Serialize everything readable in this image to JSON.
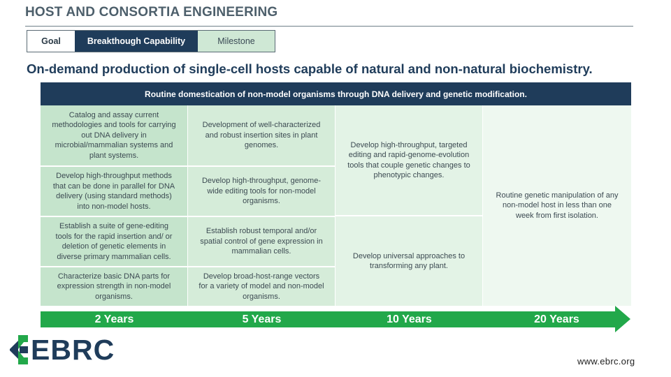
{
  "title": "HOST AND CONSORTIA ENGINEERING",
  "tabs": {
    "goal": "Goal",
    "capability": "Breakthough Capability",
    "milestone": "Milestone"
  },
  "goal_text": "On-demand production of single-cell hosts capable of natural and non-natural biochemistry.",
  "capability_header": "Routine domestication of non-model organisms through DNA delivery and genetic modification.",
  "col1": [
    "Catalog and assay current methodologies and tools for carrying out DNA delivery in microbial/mammalian systems and plant systems.",
    "Develop high-throughput methods that can be done in parallel for DNA delivery (using standard methods) into non-model hosts.",
    "Establish a suite of gene-editing tools for the rapid insertion and/ or deletion of genetic elements in diverse primary mammalian cells.",
    "Characterize basic DNA parts for expression strength in non-model organisms."
  ],
  "col2": [
    "Development of well-characterized and robust insertion sites in plant genomes.",
    "Develop high-throughput, genome-wide editing tools for non-model organisms.",
    "Establish robust temporal and/or spatial control of gene expression in mammalian cells.",
    "Develop broad-host-range vectors for a variety of model and non-model organisms."
  ],
  "col3": [
    "Develop high-throughput, targeted editing and rapid-genome-evolution tools that couple genetic changes to phenotypic changes.",
    "Develop universal approaches to transforming any plant."
  ],
  "col4": [
    "Routine genetic manipulation of any non-model host in less than one week from first isolation."
  ],
  "timeline": [
    "2 Years",
    "5 Years",
    "10 Years",
    "20 Years"
  ],
  "logo_text": "EBRC",
  "footer_url": "www.ebrc.org",
  "colors": {
    "navy": "#1f3c5a",
    "green": "#22a84a",
    "col1": "#c5e4cc",
    "col2": "#d5ecd9",
    "col3": "#e3f3e6",
    "col4": "#eef8f0"
  }
}
